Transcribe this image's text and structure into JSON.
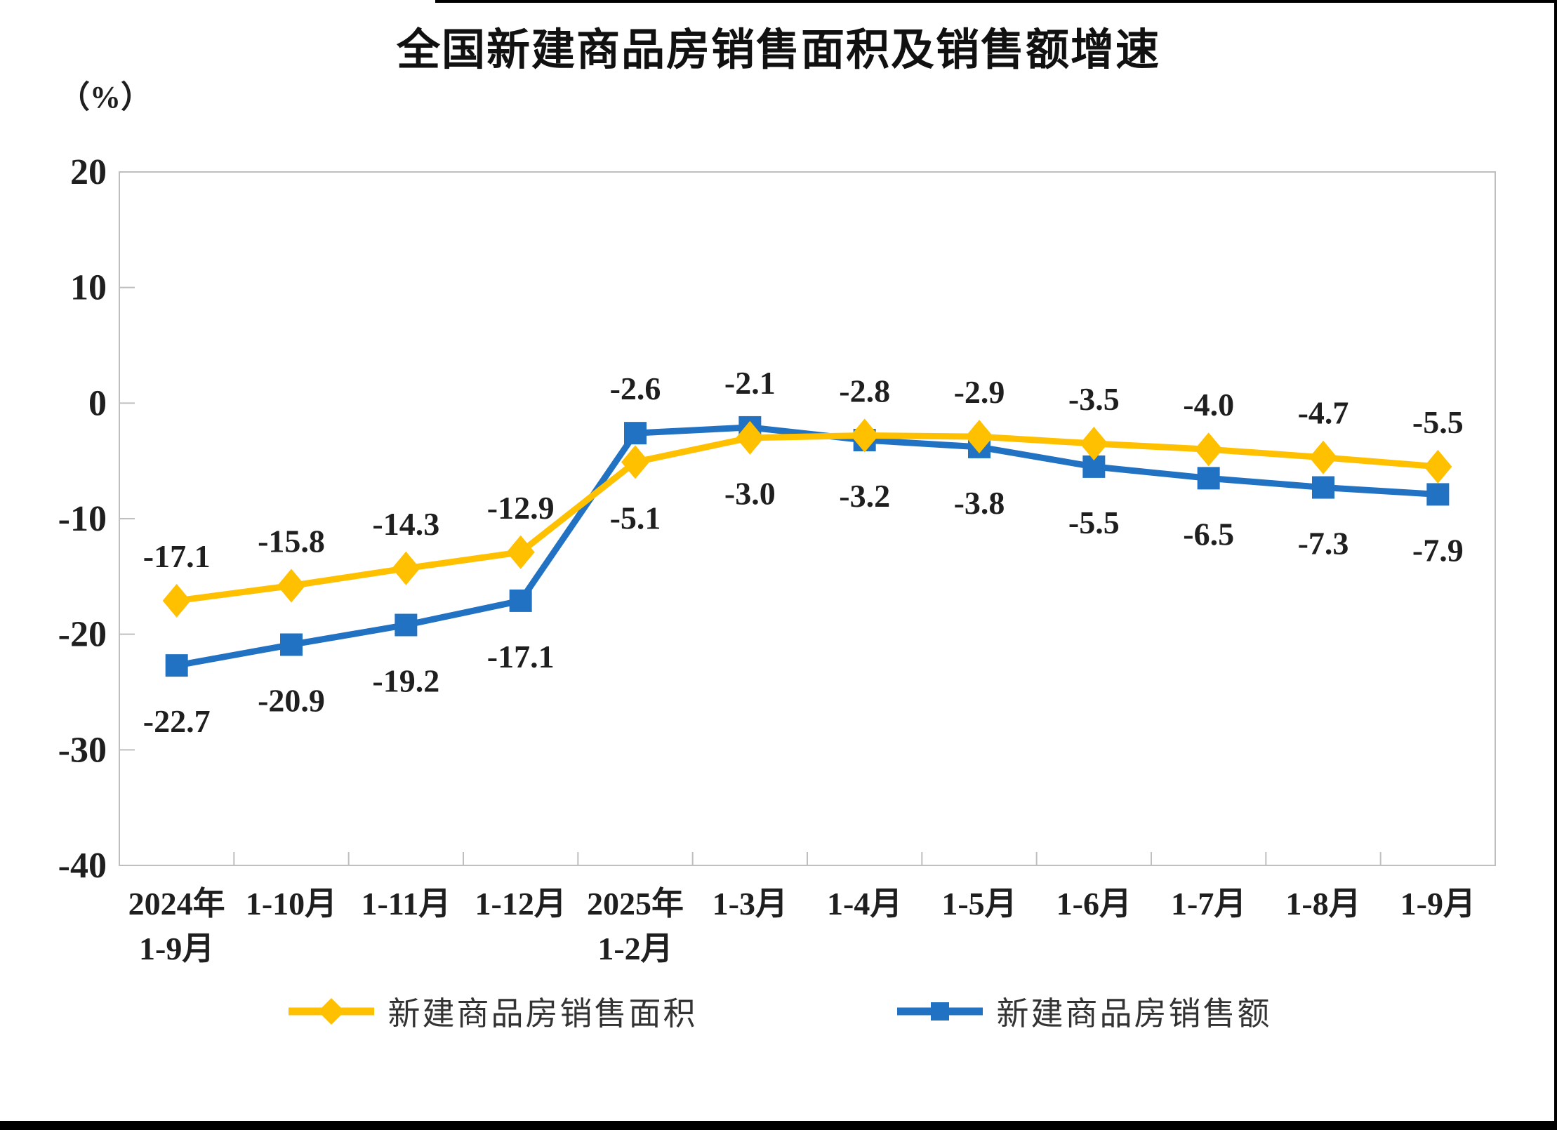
{
  "page": {
    "background": "#FFFFFF",
    "edge_bar_color": "#000000"
  },
  "chart": {
    "title": "全国新建商品房销售面积及销售额增速",
    "unit_label": "（%）"
  },
  "chart_data": {
    "type": "line",
    "title": "全国新建商品房销售面积及销售额增速",
    "unit": "%",
    "categories": [
      "2024年\n1-9月",
      "1-10月",
      "1-11月",
      "1-12月",
      "2025年\n1-2月",
      "1-3月",
      "1-4月",
      "1-5月",
      "1-6月",
      "1-7月",
      "1-8月",
      "1-9月"
    ],
    "series": [
      {
        "key": "sales-area",
        "name": "新建商品房销售面积",
        "color": "#FFC000",
        "marker": "diamond",
        "values": [
          -17.1,
          -15.8,
          -14.3,
          -12.9,
          -5.1,
          -3.0,
          -2.8,
          -2.9,
          -3.5,
          -4.0,
          -4.7,
          -5.5
        ]
      },
      {
        "key": "sales-amount",
        "name": "新建商品房销售额",
        "color": "#2272C4",
        "marker": "square",
        "values": [
          -22.7,
          -20.9,
          -19.2,
          -17.1,
          -2.6,
          -2.1,
          -3.2,
          -3.8,
          -5.5,
          -6.5,
          -7.3,
          -7.9
        ]
      }
    ],
    "ylim": [
      -40,
      20
    ],
    "yticks": [
      20,
      10,
      0,
      -10,
      -20,
      -30,
      -40
    ],
    "grid": false,
    "legend_position": "bottom",
    "axis_color": "#BFBFBF",
    "label_color": "#1F1F1F"
  }
}
